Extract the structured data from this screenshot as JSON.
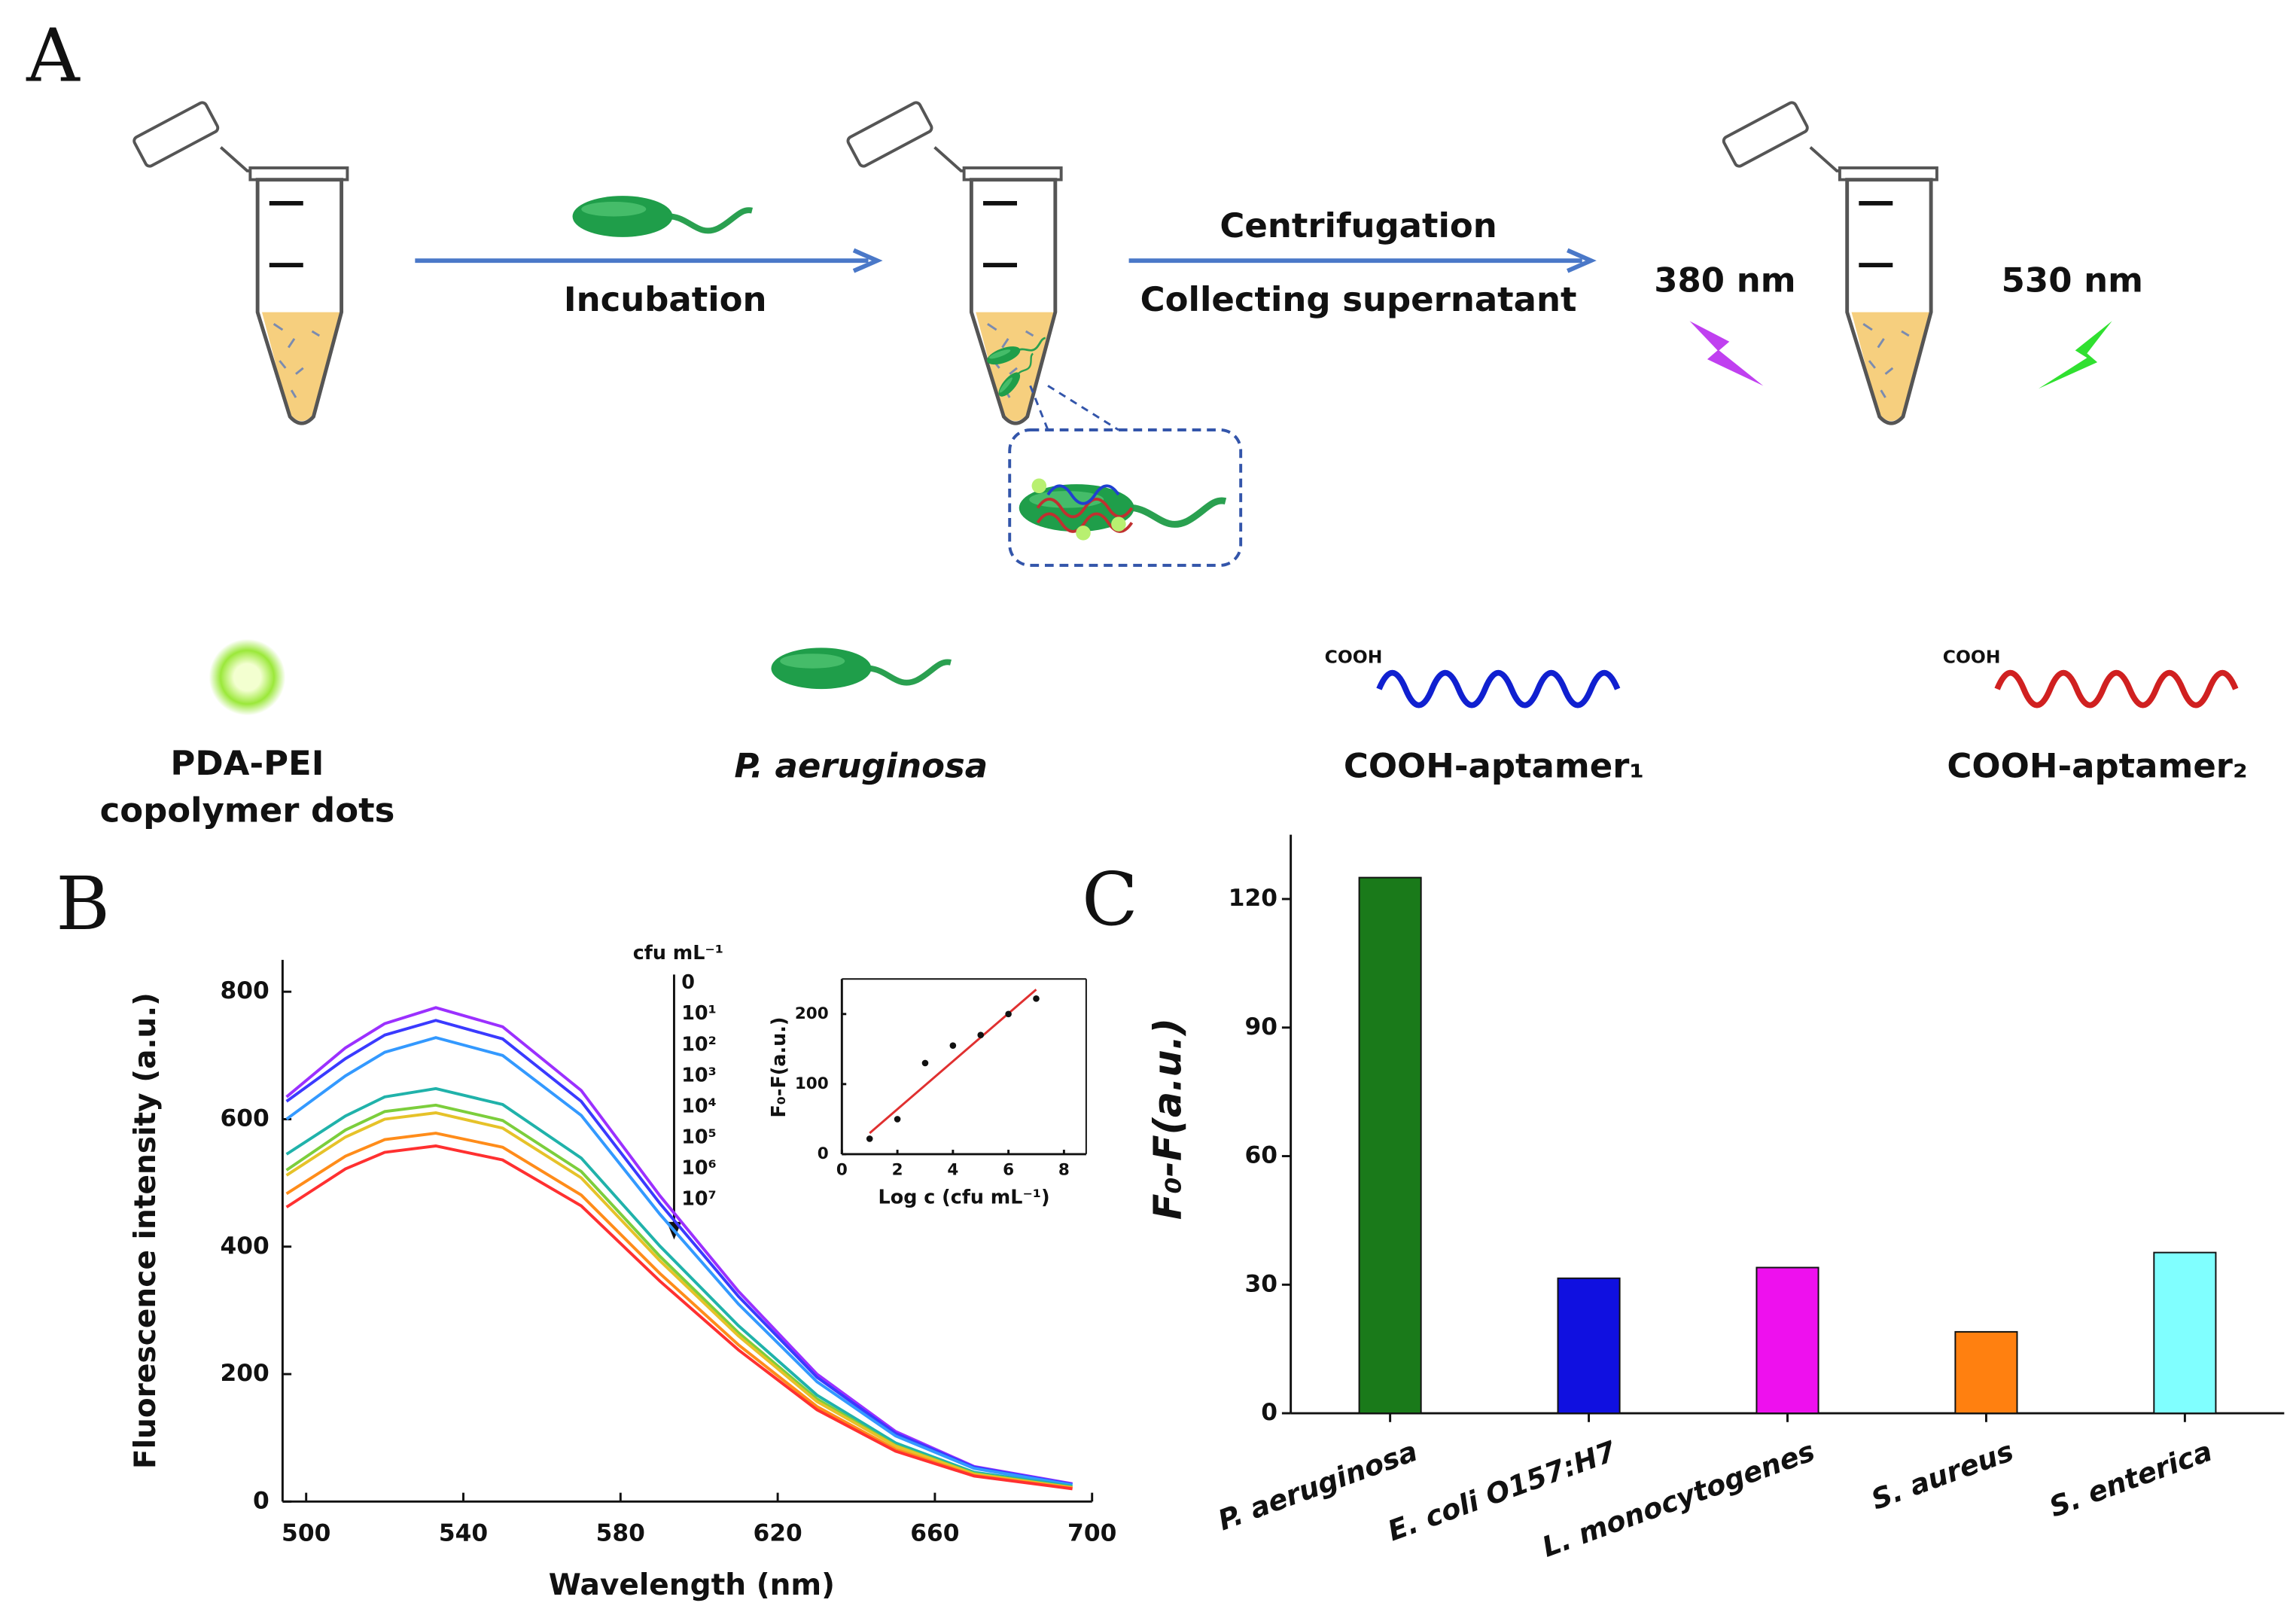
{
  "panel_a": {
    "label": "A",
    "steps": [
      "Incubation",
      "Centrifugation",
      "Collecting supernatant"
    ],
    "wavelengths": [
      "380 nm",
      "530 nm"
    ],
    "legend": [
      {
        "label": [
          "PDA-PEI",
          "copolymer dots"
        ]
      },
      {
        "label": [
          "P. aeruginosa"
        ]
      },
      {
        "label": [
          "COOH-aptamer₁"
        ],
        "tag": "COOH"
      },
      {
        "label": [
          "COOH-aptamer₂"
        ],
        "tag": "COOH"
      }
    ]
  },
  "chart_data": [
    {
      "type": "line",
      "label": "B",
      "xlabel": "Wavelength (nm)",
      "ylabel": "Fluorescence intensity (a.u.)",
      "legend_title": "cfu mL⁻¹",
      "x": [
        495,
        510,
        520,
        533,
        550,
        570,
        590,
        610,
        630,
        650,
        670,
        695
      ],
      "series": [
        {
          "name": "0",
          "color": "#9b30ff",
          "values": [
            635,
            712,
            750,
            775,
            745,
            645,
            480,
            330,
            200,
            110,
            55,
            28
          ]
        },
        {
          "name": "10¹",
          "color": "#3a3aff",
          "values": [
            628,
            695,
            732,
            755,
            726,
            628,
            468,
            322,
            195,
            107,
            54,
            27
          ]
        },
        {
          "name": "10²",
          "color": "#3399ff",
          "values": [
            600,
            668,
            705,
            728,
            700,
            606,
            451,
            310,
            188,
            103,
            52,
            26
          ]
        },
        {
          "name": "10³",
          "color": "#20b2aa",
          "values": [
            545,
            605,
            635,
            648,
            623,
            539,
            401,
            276,
            167,
            92,
            46,
            24
          ]
        },
        {
          "name": "10⁴",
          "color": "#7cce3c",
          "values": [
            520,
            583,
            612,
            622,
            598,
            518,
            385,
            265,
            161,
            88,
            44,
            22
          ]
        },
        {
          "name": "10⁵",
          "color": "#e6c229",
          "values": [
            512,
            572,
            600,
            610,
            586,
            508,
            378,
            260,
            157,
            87,
            43,
            22
          ]
        },
        {
          "name": "10⁶",
          "color": "#ff8c1a",
          "values": [
            483,
            542,
            568,
            578,
            556,
            481,
            358,
            246,
            149,
            82,
            41,
            21
          ]
        },
        {
          "name": "10⁷",
          "color": "#ff3030",
          "values": [
            462,
            522,
            548,
            558,
            536,
            464,
            346,
            238,
            144,
            79,
            40,
            20
          ]
        }
      ],
      "xlim": [
        494,
        700
      ],
      "xticks": [
        500,
        540,
        580,
        620,
        660,
        700
      ],
      "ylim": [
        0,
        850
      ],
      "yticks": [
        0,
        200,
        400,
        600,
        800
      ]
    },
    {
      "type": "scatter",
      "xlabel": "Log c (cfu mL⁻¹)",
      "ylabel": "F₀-F(a.u.)",
      "x": [
        1,
        2,
        3,
        4,
        5,
        6,
        7
      ],
      "values": [
        22,
        50,
        130,
        155,
        170,
        200,
        222
      ],
      "color": "#111111",
      "fit": {
        "x": [
          1,
          7
        ],
        "y": [
          30,
          235
        ],
        "color": "#e03030"
      },
      "xlim": [
        0,
        8.8
      ],
      "xticks": [
        0,
        2,
        4,
        6,
        8
      ],
      "ylim": [
        0,
        250
      ],
      "yticks": [
        0,
        100,
        200
      ]
    },
    {
      "type": "bar",
      "label": "C",
      "ylabel": "F₀-F(a.u.)",
      "categories": [
        "P. aeruginosa",
        "E. coli O157:H7",
        "L. monocytogenes",
        "S. aureus",
        "S. enterica"
      ],
      "values": [
        125,
        31.5,
        34,
        19,
        37.5
      ],
      "colors": [
        "#1a7a1a",
        "#1010e0",
        "#ee10ee",
        "#ff8010",
        "#80ffff"
      ],
      "ylim": [
        0,
        135
      ],
      "yticks": [
        0,
        30,
        60,
        90,
        120
      ]
    }
  ]
}
